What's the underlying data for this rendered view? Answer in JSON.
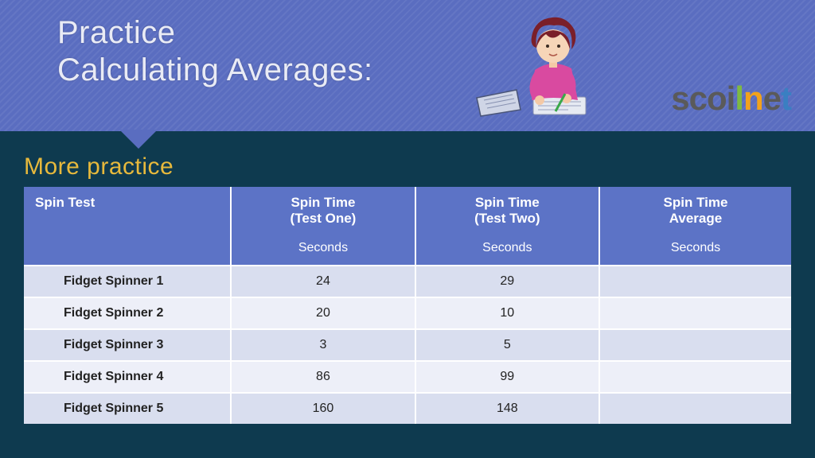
{
  "banner": {
    "title_line1": "Practice",
    "title_line2": "Calculating Averages:",
    "bg_color": "#5a6dc0"
  },
  "logo": {
    "seg1": "scoi",
    "seg2": "l",
    "seg3": "n",
    "seg4": "e",
    "seg5": "t"
  },
  "subhead": "More practice",
  "table": {
    "header_bg": "#5c73c6",
    "row_odd_bg": "#d9deef",
    "row_even_bg": "#edeff8",
    "columns": [
      {
        "label": "Spin Test",
        "sub": ""
      },
      {
        "label": "Spin Time",
        "sub2": "(Test One)",
        "unit": "Seconds"
      },
      {
        "label": "Spin Time",
        "sub2": "(Test Two)",
        "unit": "Seconds"
      },
      {
        "label": "Spin Time",
        "sub2": "Average",
        "unit": "Seconds"
      }
    ],
    "rows": [
      {
        "name": "Fidget Spinner 1",
        "t1": "24",
        "t2": "29",
        "avg": ""
      },
      {
        "name": "Fidget Spinner 2",
        "t1": "20",
        "t2": "10",
        "avg": ""
      },
      {
        "name": "Fidget Spinner 3",
        "t1": "3",
        "t2": "5",
        "avg": ""
      },
      {
        "name": "Fidget Spinner 4",
        "t1": "86",
        "t2": "99",
        "avg": ""
      },
      {
        "name": "Fidget Spinner 5",
        "t1": "160",
        "t2": "148",
        "avg": ""
      }
    ]
  },
  "colors": {
    "page_bg": "#0e3a4f",
    "subhead": "#e7b93c"
  }
}
